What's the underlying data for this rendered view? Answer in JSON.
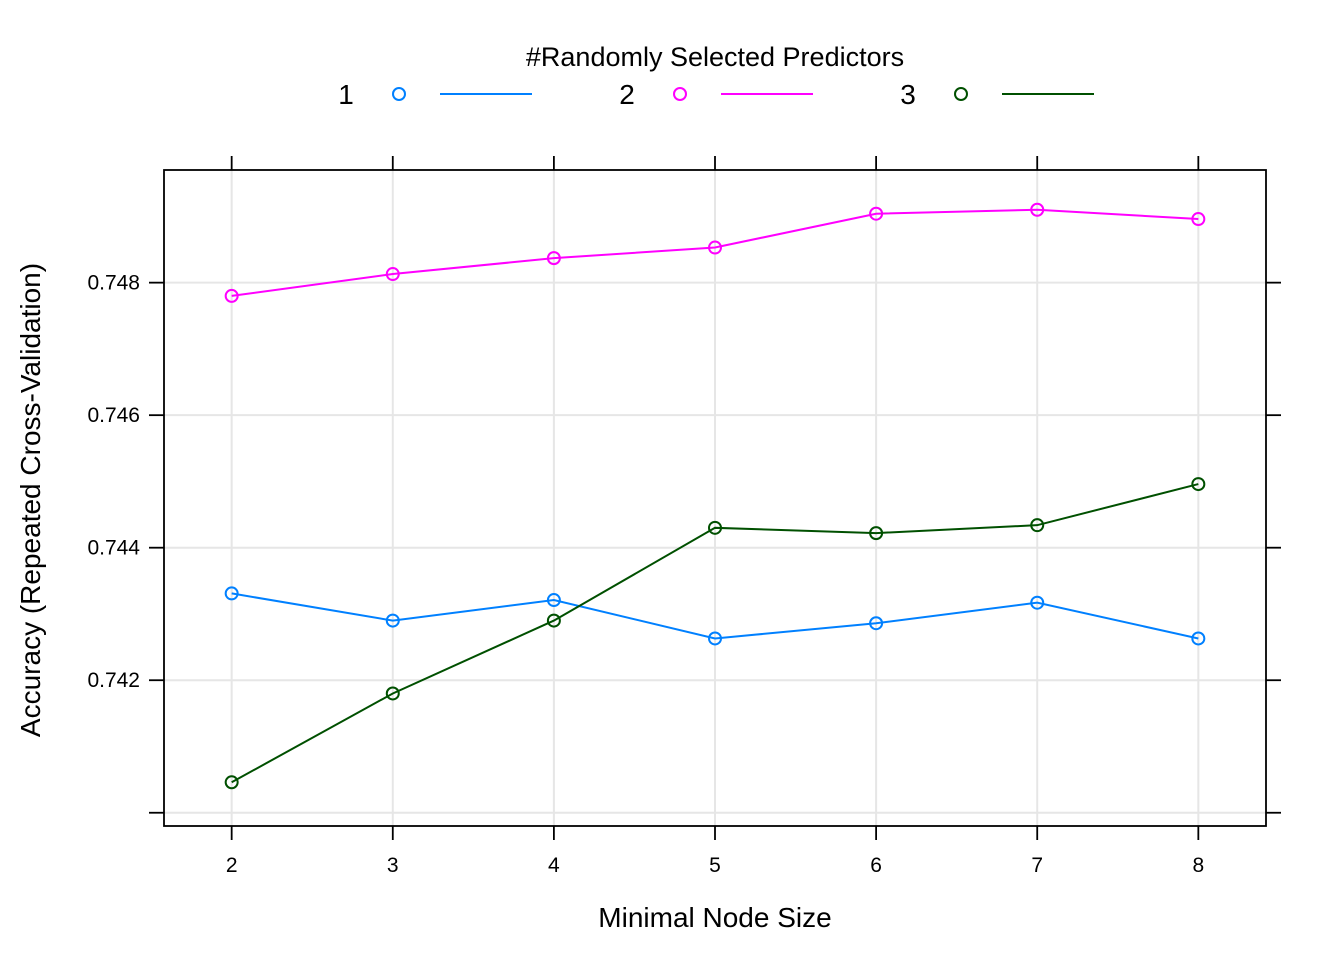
{
  "chart_data": {
    "type": "line",
    "legend": {
      "title": "#Randomly Selected Predictors",
      "placement": "top"
    },
    "xlabel": "Minimal Node Size",
    "ylabel": "Accuracy (Repeated Cross-Validation)",
    "x": [
      2,
      3,
      4,
      5,
      6,
      7,
      8
    ],
    "x_ticks": [
      "2",
      "3",
      "4",
      "5",
      "6",
      "7",
      "8"
    ],
    "xlim": [
      1.58,
      8.42
    ],
    "y_ticks": [
      0.742,
      0.744,
      0.746,
      0.748
    ],
    "y_tick_labels": [
      "0.742",
      "0.744",
      "0.746",
      "0.748"
    ],
    "ylim": [
      0.7398,
      0.7497
    ],
    "grid": true,
    "series": [
      {
        "name": "1",
        "color": "#0080ff",
        "values": [
          0.74331,
          0.7429,
          0.74321,
          0.74263,
          0.74286,
          0.74317,
          0.74263
        ]
      },
      {
        "name": "2",
        "color": "#ff00ff",
        "values": [
          0.7478,
          0.74813,
          0.74837,
          0.74853,
          0.74904,
          0.7491,
          0.74896
        ]
      },
      {
        "name": "3",
        "color": "#005000",
        "values": [
          0.74046,
          0.7418,
          0.7429,
          0.7443,
          0.74422,
          0.74434,
          0.74496
        ]
      }
    ]
  }
}
